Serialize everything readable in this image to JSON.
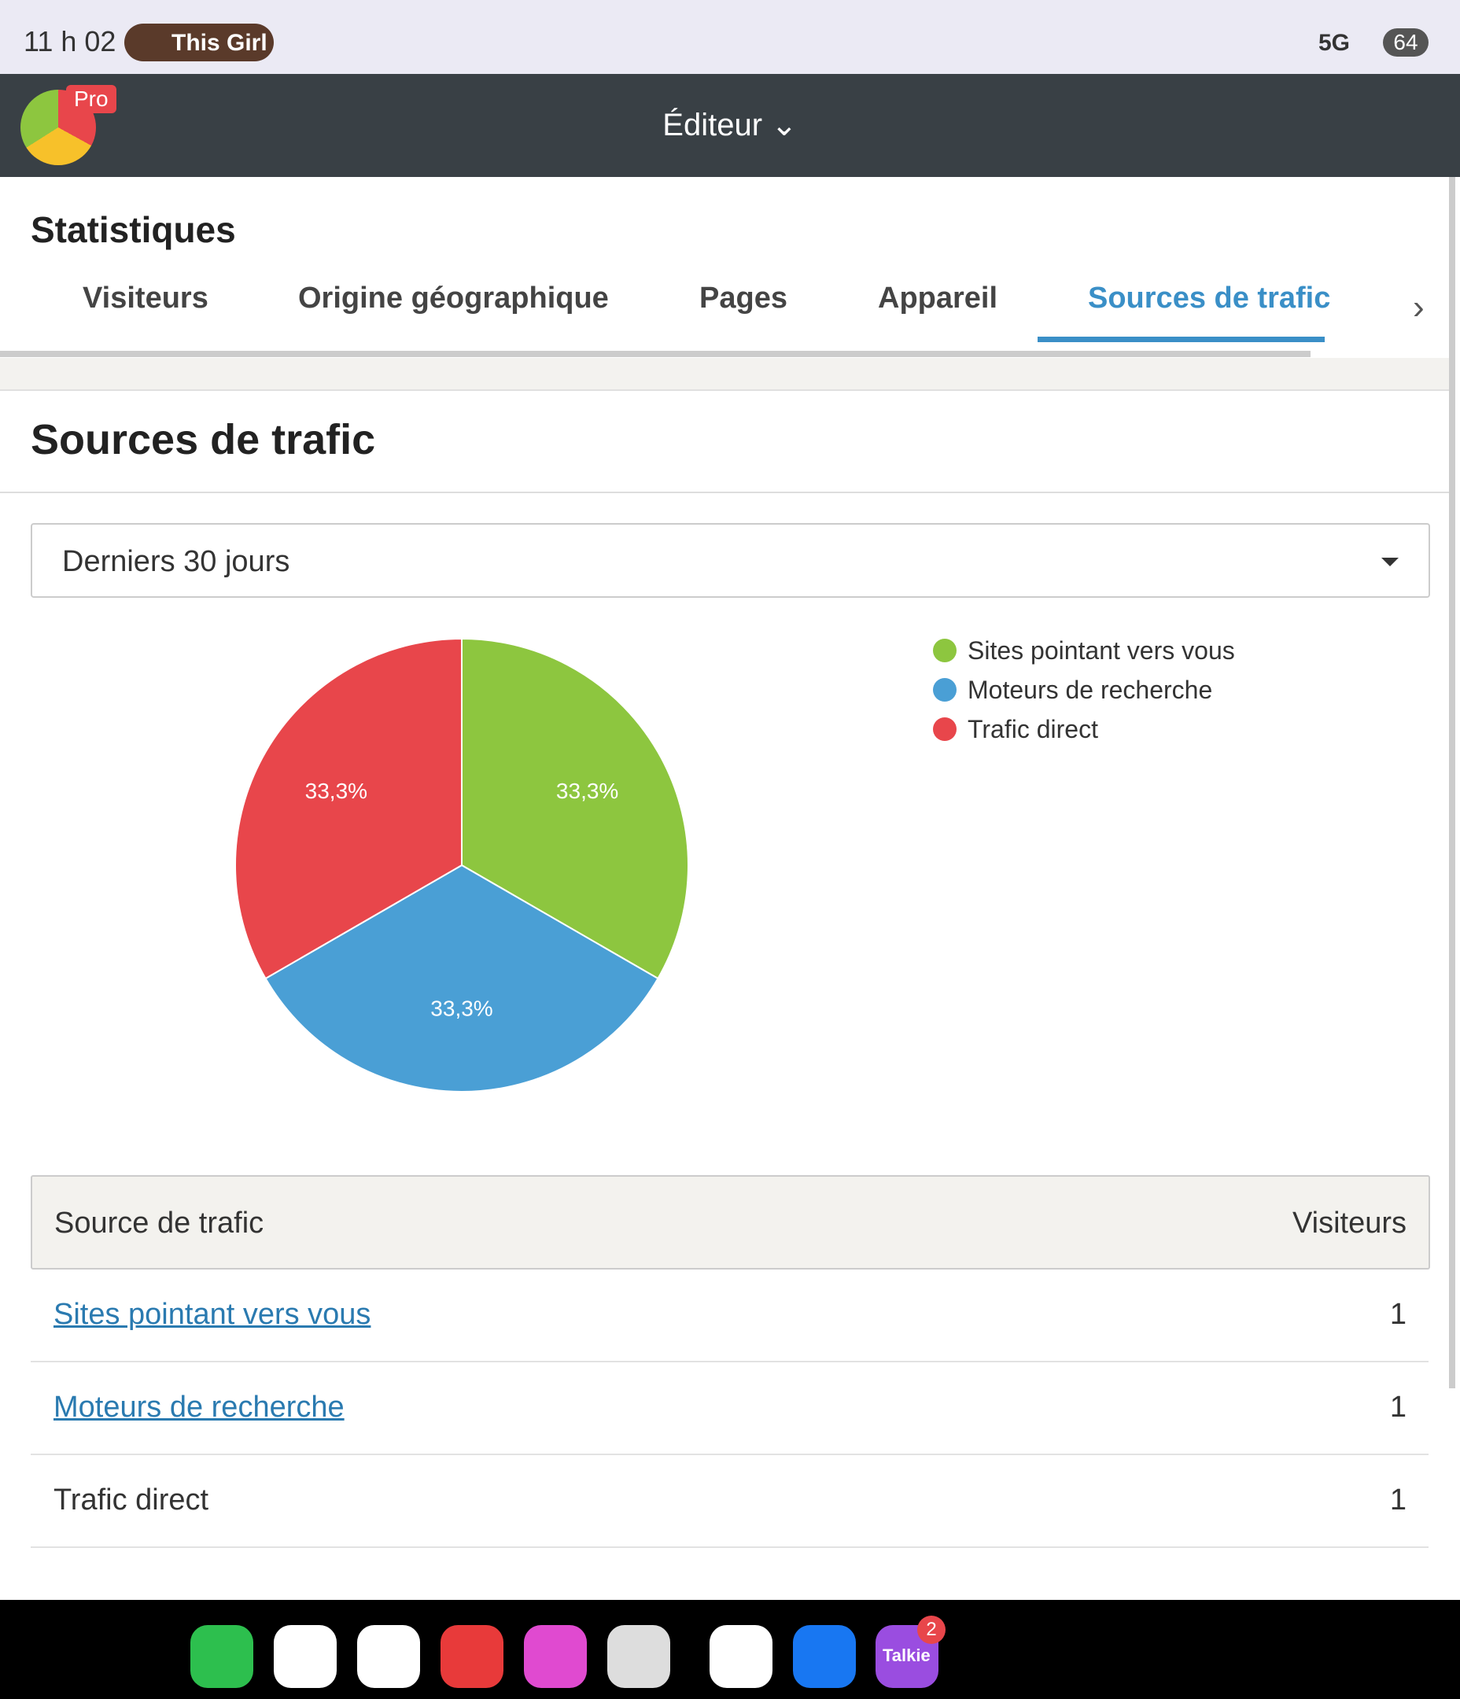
{
  "status_bar": {
    "time": "11 h 02",
    "media": "This Girl",
    "network": "5G",
    "battery": "64"
  },
  "header": {
    "badge": "Pro",
    "title": "Éditeur"
  },
  "page_title": "Statistiques",
  "tabs": [
    "Visiteurs",
    "Origine géographique",
    "Pages",
    "Appareil",
    "Sources de trafic"
  ],
  "section_title": "Sources de trafic",
  "period": "Derniers 30 jours",
  "chart_data": {
    "type": "pie",
    "categories": [
      "Sites pointant vers vous",
      "Moteurs de recherche",
      "Trafic direct"
    ],
    "values": [
      33.3,
      33.3,
      33.3
    ],
    "value_labels": [
      "33,3%",
      "33,3%",
      "33,3%"
    ],
    "colors": [
      "#8dc63f",
      "#4a9fd5",
      "#e8464b"
    ]
  },
  "table": {
    "columns": [
      "Source de trafic",
      "Visiteurs"
    ],
    "rows": [
      [
        "Sites pointant vers vous",
        "1"
      ],
      [
        "Moteurs de recherche",
        "1"
      ],
      [
        "Trafic direct",
        "1"
      ]
    ]
  },
  "dock": {
    "badge": "2",
    "label": "Talkie"
  }
}
